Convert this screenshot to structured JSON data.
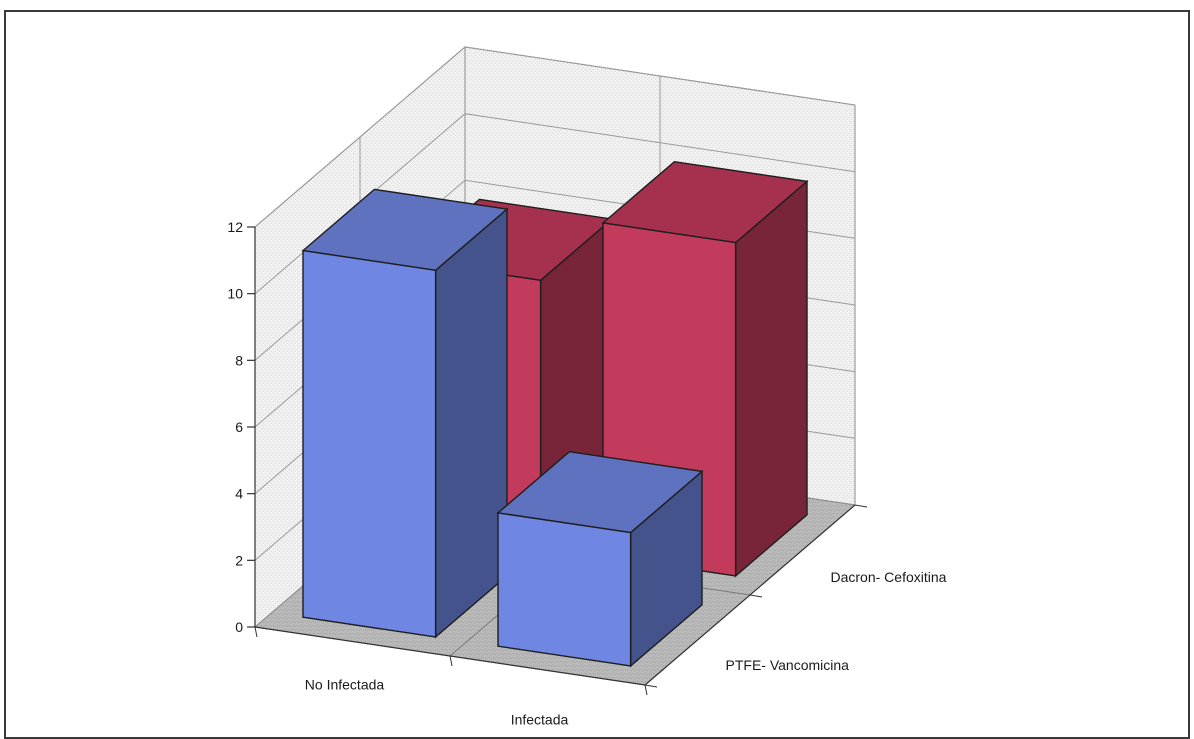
{
  "chart_data": {
    "type": "bar",
    "subtype": "3d-column",
    "title": "",
    "xlabel": "",
    "ylabel": "",
    "categories": [
      "No Infectada",
      "Infectada"
    ],
    "series": [
      {
        "name": "PTFE- Vancomicina",
        "values": [
          11,
          4
        ],
        "color": "#6f86e2"
      },
      {
        "name": "Dacron- Cefoxitina",
        "values": [
          8,
          10
        ],
        "color": "#c23a5c"
      }
    ],
    "yticks": [
      0,
      2,
      4,
      6,
      8,
      10,
      12
    ],
    "ylim": [
      0,
      12
    ],
    "grid": true,
    "legend": "none"
  }
}
